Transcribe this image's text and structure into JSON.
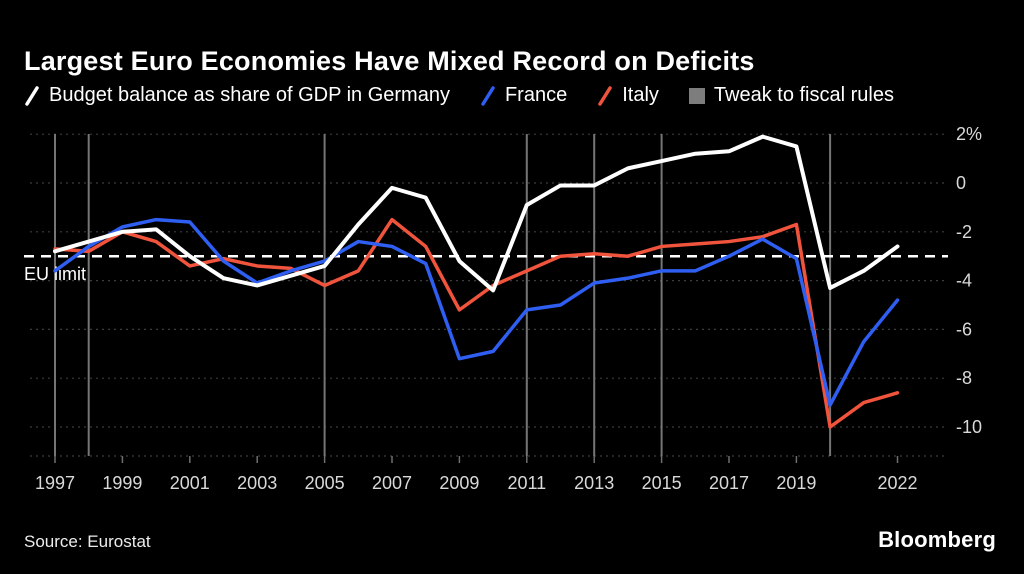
{
  "header": {
    "title": "Largest Euro Economies Have Mixed Record on Deficits"
  },
  "legend": {
    "items": [
      {
        "label": "Budget balance as share of GDP in Germany",
        "color": "#ffffff",
        "swatch": "line"
      },
      {
        "label": "France",
        "color": "#2f5ff2",
        "swatch": "line"
      },
      {
        "label": "Italy",
        "color": "#f0543c",
        "swatch": "line"
      },
      {
        "label": "Tweak to fiscal rules",
        "color": "#7d7d7d",
        "swatch": "square"
      }
    ]
  },
  "chart_data": {
    "type": "line",
    "title": "Largest Euro Economies Have Mixed Record on Deficits",
    "x": [
      1997,
      1998,
      1999,
      2000,
      2001,
      2002,
      2003,
      2004,
      2005,
      2006,
      2007,
      2008,
      2009,
      2010,
      2011,
      2012,
      2013,
      2014,
      2015,
      2016,
      2017,
      2018,
      2019,
      2020,
      2021,
      2022
    ],
    "series": [
      {
        "name": "Germany",
        "color": "#ffffff",
        "values": [
          -2.8,
          -2.4,
          -2.0,
          -1.9,
          -3.0,
          -3.9,
          -4.2,
          -3.8,
          -3.4,
          -1.7,
          -0.2,
          -0.6,
          -3.2,
          -4.4,
          -0.9,
          -0.1,
          -0.1,
          0.6,
          0.9,
          1.2,
          1.3,
          1.9,
          1.5,
          -4.3,
          -3.6,
          -2.6
        ]
      },
      {
        "name": "France",
        "color": "#2f5ff2",
        "values": [
          -3.6,
          -2.6,
          -1.8,
          -1.5,
          -1.6,
          -3.2,
          -4.1,
          -3.6,
          -3.2,
          -2.4,
          -2.6,
          -3.3,
          -7.2,
          -6.9,
          -5.2,
          -5.0,
          -4.1,
          -3.9,
          -3.6,
          -3.6,
          -3.0,
          -2.3,
          -3.1,
          -9.1,
          -6.5,
          -4.8
        ]
      },
      {
        "name": "Italy",
        "color": "#f0543c",
        "values": [
          -2.7,
          -2.8,
          -2.0,
          -2.4,
          -3.4,
          -3.1,
          -3.4,
          -3.5,
          -4.2,
          -3.6,
          -1.5,
          -2.6,
          -5.2,
          -4.2,
          -3.6,
          -3.0,
          -2.9,
          -3.0,
          -2.6,
          -2.5,
          -2.4,
          -2.2,
          -1.7,
          -10.0,
          -9.0,
          -8.6
        ]
      }
    ],
    "y_axis": {
      "ticks": [
        2,
        0,
        -2,
        -4,
        -6,
        -8,
        -10
      ],
      "tick_labels": [
        "2%",
        "0",
        "-2",
        "-4",
        "-6",
        "-8",
        "-10"
      ],
      "range": [
        -11.3,
        2.3
      ]
    },
    "x_axis": {
      "tick_years": [
        1997,
        1999,
        2001,
        2003,
        2005,
        2007,
        2009,
        2011,
        2013,
        2015,
        2017,
        2019,
        2022
      ],
      "tick_labels": [
        "1997",
        "1999",
        "2001",
        "2003",
        "2005",
        "2007",
        "2009",
        "2011",
        "2013",
        "2015",
        "2017",
        "2019",
        "2022"
      ]
    },
    "reference_line": {
      "value": -3,
      "label": "EU limit",
      "style": "dashed",
      "color": "#ffffff"
    },
    "event_lines": {
      "label": "Tweak to fiscal rules",
      "years": [
        1997,
        1998,
        2005,
        2011,
        2013,
        2015,
        2020
      ],
      "color": "#757575"
    },
    "grid": true,
    "legend_position": "top"
  },
  "footer": {
    "source": "Source: Eurostat",
    "brand": "Bloomberg"
  },
  "colors": {
    "background": "#000000",
    "grid": "#3d3d3d",
    "axis_text": "#d9d9d9",
    "tick": "#6f6f6f"
  }
}
